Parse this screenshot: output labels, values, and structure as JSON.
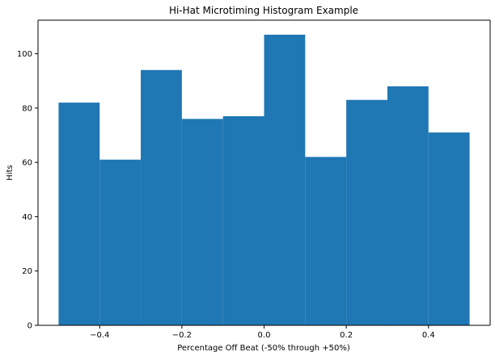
{
  "chart_data": {
    "type": "bar",
    "title": "Hi-Hat Microtiming Histogram Example",
    "xlabel": "Percentage Off Beat (-50% through +50%)",
    "ylabel": "Hits",
    "bins": [
      {
        "x0": -0.5,
        "x1": -0.4,
        "value": 82
      },
      {
        "x0": -0.4,
        "x1": -0.3,
        "value": 61
      },
      {
        "x0": -0.3,
        "x1": -0.2,
        "value": 94
      },
      {
        "x0": -0.2,
        "x1": -0.1,
        "value": 76
      },
      {
        "x0": -0.1,
        "x1": 0.0,
        "value": 77
      },
      {
        "x0": 0.0,
        "x1": 0.1,
        "value": 107
      },
      {
        "x0": 0.1,
        "x1": 0.2,
        "value": 62
      },
      {
        "x0": 0.2,
        "x1": 0.3,
        "value": 83
      },
      {
        "x0": 0.3,
        "x1": 0.4,
        "value": 88
      },
      {
        "x0": 0.4,
        "x1": 0.5,
        "value": 71
      }
    ],
    "xlim": [
      -0.55,
      0.55
    ],
    "ylim": [
      0,
      112.35
    ],
    "xticks": [
      -0.4,
      -0.2,
      0.0,
      0.2,
      0.4
    ],
    "xtick_labels": [
      "−0.4",
      "−0.2",
      "0.0",
      "0.2",
      "0.4"
    ],
    "yticks": [
      0,
      20,
      40,
      60,
      80,
      100
    ],
    "ytick_labels": [
      "0",
      "20",
      "40",
      "60",
      "80",
      "100"
    ],
    "bar_color": "#1f77b4",
    "grid": false,
    "legend": false
  }
}
